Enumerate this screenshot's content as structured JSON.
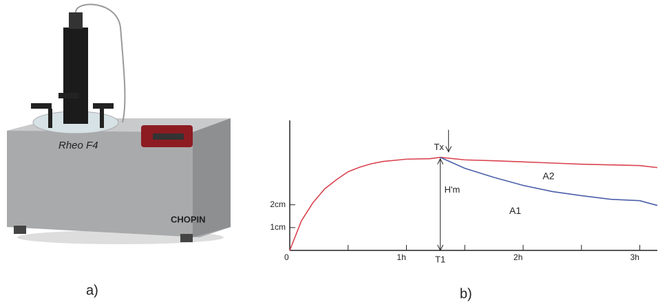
{
  "photo": {
    "brand": "Rheo F4",
    "maker": "CHOPIN",
    "label": "a)"
  },
  "chart_data": {
    "type": "line",
    "panel_label": "b)",
    "x": [
      0,
      0.1,
      0.2,
      0.3,
      0.4,
      0.5,
      0.6,
      0.7,
      0.8,
      1.0,
      1.2,
      1.29,
      1.5,
      1.75,
      2.0,
      2.25,
      2.5,
      2.75,
      3.0,
      3.15
    ],
    "series": [
      {
        "name": "A2",
        "color": "#d9434f",
        "values": [
          0,
          1.3,
          2.1,
          2.7,
          3.1,
          3.45,
          3.65,
          3.8,
          3.9,
          4.0,
          4.02,
          4.08,
          3.97,
          3.93,
          3.88,
          3.83,
          3.78,
          3.75,
          3.72,
          3.63
        ]
      },
      {
        "name": "A1",
        "color": "#4a5ea8",
        "values": [
          null,
          null,
          null,
          null,
          null,
          null,
          null,
          null,
          null,
          null,
          null,
          4.08,
          3.6,
          3.2,
          2.85,
          2.58,
          2.4,
          2.24,
          2.18,
          1.97
        ]
      }
    ],
    "xlim": [
      0,
      3.15
    ],
    "ylim": [
      0,
      5.7
    ],
    "xticks": [
      0,
      {
        "value": 1,
        "label": "1h"
      },
      {
        "value": 2,
        "label": "2h"
      },
      {
        "value": 3,
        "label": "3h"
      }
    ],
    "xminor_ticks": [
      0.5,
      1.5,
      2.5
    ],
    "yticks": [
      {
        "value": 1,
        "label": "1cm"
      },
      {
        "value": 2,
        "label": "2cm"
      }
    ],
    "marker": {
      "x": 1.29,
      "x_label": "T1",
      "top_label": "Tx",
      "height_label": "H'm",
      "height": 4.08
    }
  }
}
